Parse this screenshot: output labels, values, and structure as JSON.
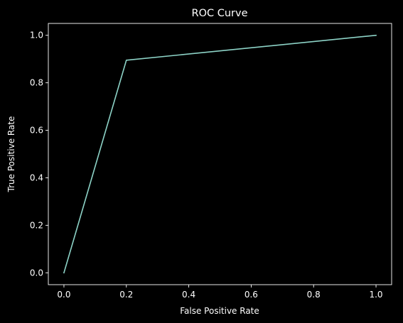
{
  "chart_data": {
    "type": "line",
    "title": "ROC Curve",
    "xlabel": "False Positive Rate",
    "ylabel": "True Positive Rate",
    "xlim": [
      -0.05,
      1.05
    ],
    "ylim": [
      -0.05,
      1.05
    ],
    "xticks": [
      0.0,
      0.2,
      0.4,
      0.6,
      0.8,
      1.0
    ],
    "yticks": [
      0.0,
      0.2,
      0.4,
      0.6,
      0.8,
      1.0
    ],
    "xtick_labels": [
      "0.0",
      "0.2",
      "0.4",
      "0.6",
      "0.8",
      "1.0"
    ],
    "ytick_labels": [
      "0.0",
      "0.2",
      "0.4",
      "0.6",
      "0.8",
      "1.0"
    ],
    "grid": false,
    "legend": "none",
    "series": [
      {
        "color": "#8dd3c7",
        "x": [
          0.0,
          0.2,
          1.0
        ],
        "y": [
          0.0,
          0.895,
          1.0
        ]
      }
    ],
    "background": "#000000",
    "foreground": "#ffffff"
  }
}
